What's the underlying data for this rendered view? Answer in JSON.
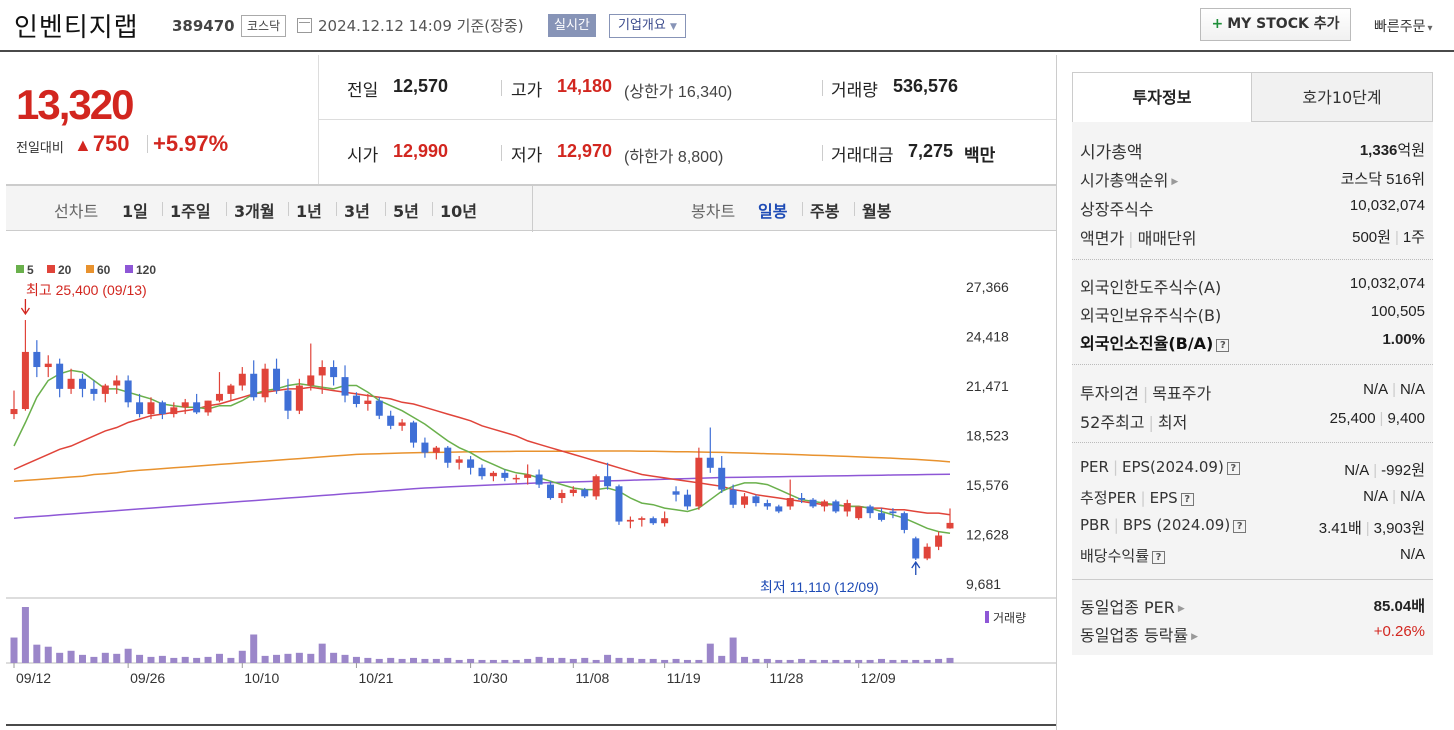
{
  "header": {
    "company_name": "인벤티지랩",
    "stock_code": "389470",
    "market": "코스닥",
    "date_text": "2024.12.12 14:09 기준(장중)",
    "realtime_label": "실시간",
    "overview_label": "기업개요",
    "mystock_label": "MY STOCK 추가",
    "quick_order_label": "빠른주문"
  },
  "summary": {
    "current_price": "13,320",
    "change_label": "전일대비",
    "change_value": "750",
    "change_pct": "+5.97%",
    "prev_label": "전일",
    "prev_value": "12,570",
    "high_label": "고가",
    "high_value": "14,180",
    "upper_limit": "(상한가 16,340)",
    "volume_label": "거래량",
    "volume_value": "536,576",
    "open_label": "시가",
    "open_value": "12,990",
    "low_label": "저가",
    "low_value": "12,970",
    "lower_limit": "(하한가 8,800)",
    "amount_label": "거래대금",
    "amount_value": "7,275",
    "amount_unit": "백만"
  },
  "chart_tabs": {
    "line_label": "선차트",
    "line_periods": [
      "1일",
      "1주일",
      "3개월",
      "1년",
      "3년",
      "5년",
      "10년"
    ],
    "candle_label": "봉차트",
    "candle_periods": [
      "일봉",
      "주봉",
      "월봉"
    ],
    "active_candle": "일봉"
  },
  "chart_data": {
    "type": "candlestick",
    "legend": [
      {
        "name": "5",
        "color": "#6ab04c"
      },
      {
        "name": "20",
        "color": "#e0443a"
      },
      {
        "name": "60",
        "color": "#e8922e"
      },
      {
        "name": "120",
        "color": "#8e57d6"
      }
    ],
    "y_ticks": [
      27366,
      24418,
      21471,
      18523,
      15576,
      12628,
      9681
    ],
    "ylim": [
      9681,
      27366
    ],
    "x_ticks": [
      "09/12",
      "09/26",
      "10/10",
      "10/21",
      "10/30",
      "11/08",
      "11/19",
      "11/28",
      "12/09"
    ],
    "x_tick_index": [
      0,
      10,
      20,
      30,
      40,
      49,
      57,
      66,
      74
    ],
    "high_annotation": "최고 25,400 (09/13)",
    "low_annotation": "최저 11,110 (12/09)",
    "volume_label": "거래량",
    "candles": [
      [
        19800,
        21200,
        19500,
        20100
      ],
      [
        20100,
        25400,
        20000,
        23500
      ],
      [
        23500,
        24200,
        22000,
        22600
      ],
      [
        22600,
        23300,
        22000,
        22800
      ],
      [
        22800,
        23100,
        20800,
        21300
      ],
      [
        21300,
        22500,
        21000,
        21900
      ],
      [
        21900,
        22200,
        20800,
        21300
      ],
      [
        21300,
        21800,
        20600,
        21000
      ],
      [
        21000,
        21600,
        20500,
        21500
      ],
      [
        21500,
        22100,
        21000,
        21800
      ],
      [
        21800,
        22100,
        20200,
        20500
      ],
      [
        20500,
        21000,
        19600,
        19800
      ],
      [
        19800,
        20800,
        19500,
        20500
      ],
      [
        20500,
        20600,
        19500,
        19800
      ],
      [
        19800,
        20500,
        19600,
        20200
      ],
      [
        20200,
        20700,
        19800,
        20500
      ],
      [
        20500,
        21000,
        19800,
        19900
      ],
      [
        19900,
        20600,
        19700,
        20600
      ],
      [
        20600,
        22300,
        20500,
        21000
      ],
      [
        21000,
        21600,
        20600,
        21500
      ],
      [
        21500,
        22600,
        21200,
        22200
      ],
      [
        22200,
        23000,
        20600,
        20800
      ],
      [
        20800,
        22800,
        20500,
        22500
      ],
      [
        22500,
        23100,
        21000,
        21200
      ],
      [
        21200,
        21900,
        19500,
        20000
      ],
      [
        20000,
        21900,
        19800,
        21500
      ],
      [
        21500,
        24000,
        21200,
        22100
      ],
      [
        22100,
        23000,
        21000,
        22600
      ],
      [
        22600,
        23000,
        21500,
        22000
      ],
      [
        22000,
        22700,
        20500,
        20900
      ],
      [
        20900,
        21100,
        20200,
        20400
      ],
      [
        20400,
        21000,
        20000,
        20600
      ],
      [
        20600,
        20800,
        19500,
        19700
      ],
      [
        19700,
        20000,
        18900,
        19100
      ],
      [
        19100,
        19500,
        18800,
        19300
      ],
      [
        19300,
        19400,
        17800,
        18100
      ],
      [
        18100,
        18400,
        17200,
        17500
      ],
      [
        17500,
        17900,
        17100,
        17800
      ],
      [
        17800,
        17900,
        16600,
        16900
      ],
      [
        16900,
        17300,
        16500,
        17100
      ],
      [
        17100,
        17300,
        16200,
        16600
      ],
      [
        16600,
        16800,
        15900,
        16100
      ],
      [
        16100,
        16400,
        15800,
        16300
      ],
      [
        16300,
        16500,
        15800,
        16000
      ],
      [
        16000,
        16200,
        15700,
        16000
      ],
      [
        16000,
        16800,
        15600,
        16200
      ],
      [
        16200,
        16500,
        15400,
        15600
      ],
      [
        15600,
        15800,
        14700,
        14800
      ],
      [
        14800,
        15300,
        14500,
        15100
      ],
      [
        15100,
        15500,
        14900,
        15300
      ],
      [
        15300,
        15400,
        14800,
        14900
      ],
      [
        14900,
        16200,
        14700,
        16100
      ],
      [
        16100,
        16900,
        15300,
        15500
      ],
      [
        15500,
        15600,
        13200,
        13400
      ],
      [
        13400,
        13700,
        13000,
        13500
      ],
      [
        13500,
        13700,
        13100,
        13600
      ],
      [
        13600,
        13700,
        13200,
        13300
      ],
      [
        13300,
        14000,
        13100,
        13600
      ],
      [
        15200,
        15500,
        14600,
        15000
      ],
      [
        15000,
        15300,
        14100,
        14300
      ],
      [
        14300,
        17800,
        14100,
        17200
      ],
      [
        17200,
        19000,
        16300,
        16600
      ],
      [
        16600,
        17300,
        15100,
        15300
      ],
      [
        15300,
        15600,
        14200,
        14400
      ],
      [
        14400,
        15100,
        14200,
        14900
      ],
      [
        14900,
        15000,
        14300,
        14500
      ],
      [
        14500,
        14700,
        14100,
        14300
      ],
      [
        14300,
        14400,
        13900,
        14000
      ],
      [
        14300,
        15900,
        14100,
        14800
      ],
      [
        14800,
        15100,
        14500,
        14700
      ],
      [
        14700,
        14800,
        14200,
        14300
      ],
      [
        14300,
        14700,
        14000,
        14600
      ],
      [
        14600,
        14700,
        13900,
        14000
      ],
      [
        14000,
        14700,
        13700,
        14500
      ],
      [
        13600,
        14200,
        13500,
        14300
      ],
      [
        14300,
        14400,
        13600,
        13900
      ],
      [
        13900,
        14200,
        13400,
        13500
      ],
      [
        14000,
        14200,
        13600,
        13900
      ],
      [
        13900,
        14000,
        12700,
        12900
      ],
      [
        12400,
        12500,
        11110,
        11200
      ],
      [
        11200,
        12100,
        11100,
        11900
      ],
      [
        11900,
        12800,
        11700,
        12570
      ],
      [
        12990,
        14180,
        12970,
        13320
      ]
    ],
    "volumes": [
      25,
      55,
      18,
      16,
      10,
      12,
      8,
      6,
      10,
      9,
      14,
      8,
      6,
      7,
      5,
      6,
      5,
      6,
      9,
      5,
      12,
      28,
      7,
      8,
      9,
      10,
      9,
      19,
      10,
      8,
      6,
      5,
      4,
      5,
      4,
      5,
      4,
      4,
      5,
      3,
      4,
      3,
      3,
      3,
      3,
      4,
      6,
      5,
      5,
      4,
      5,
      3,
      8,
      5,
      5,
      4,
      4,
      3,
      4,
      3,
      3,
      19,
      7,
      25,
      6,
      4,
      4,
      3,
      3,
      4,
      3,
      3,
      3,
      3,
      3,
      3,
      4,
      3,
      3,
      3,
      3,
      4,
      5
    ],
    "ma5": [
      17900,
      19300,
      20800,
      21800,
      22200,
      22400,
      22300,
      21800,
      21300,
      21300,
      21100,
      20900,
      20700,
      20400,
      20300,
      20200,
      20200,
      20100,
      20300,
      20300,
      20600,
      21000,
      21200,
      21300,
      21500,
      21600,
      21500,
      21400,
      21300,
      21500,
      21500,
      21100,
      20600,
      20300,
      20000,
      19600,
      19200,
      18700,
      18200,
      17800,
      17500,
      17100,
      16800,
      16500,
      16300,
      16200,
      16000,
      15800,
      15600,
      15400,
      15300,
      15300,
      15400,
      15200,
      14800,
      14500,
      14400,
      14200,
      14100,
      14000,
      14200,
      14700,
      15200,
      15500,
      15700,
      15700,
      15600,
      15300,
      15000,
      14700,
      14600,
      14500,
      14400,
      14300,
      14300,
      14200,
      14000,
      13800,
      13600,
      13300,
      13000,
      12800,
      12700
    ],
    "ma20": [
      16500,
      16800,
      17100,
      17400,
      17700,
      17900,
      18200,
      18500,
      18800,
      19000,
      19300,
      19500,
      19700,
      19800,
      19900,
      20000,
      20100,
      20300,
      20400,
      20600,
      20800,
      21000,
      21100,
      21200,
      21300,
      21300,
      21400,
      21300,
      21200,
      21100,
      21000,
      20900,
      20800,
      20700,
      20500,
      20400,
      20200,
      20000,
      19800,
      19600,
      19400,
      19100,
      18900,
      18700,
      18500,
      18200,
      18000,
      17800,
      17600,
      17400,
      17200,
      17000,
      16800,
      16600,
      16400,
      16200,
      16100,
      16000,
      15900,
      15800,
      15700,
      15600,
      15500,
      15300,
      15200,
      15000,
      14900,
      14800,
      14700,
      14600,
      14500,
      14400,
      14400,
      14300,
      14300,
      14200,
      14200,
      14100,
      14100,
      14000,
      13900,
      13900,
      13800
    ],
    "ma60": [
      15800,
      15850,
      15900,
      15950,
      16000,
      16050,
      16100,
      16200,
      16250,
      16300,
      16400,
      16450,
      16500,
      16550,
      16600,
      16650,
      16700,
      16750,
      16800,
      16850,
      16900,
      16950,
      17000,
      17050,
      17100,
      17150,
      17200,
      17250,
      17300,
      17350,
      17400,
      17420,
      17440,
      17460,
      17480,
      17500,
      17510,
      17520,
      17530,
      17540,
      17550,
      17560,
      17570,
      17570,
      17580,
      17580,
      17580,
      17590,
      17590,
      17590,
      17600,
      17600,
      17600,
      17600,
      17600,
      17590,
      17580,
      17570,
      17560,
      17550,
      17540,
      17530,
      17520,
      17500,
      17480,
      17460,
      17440,
      17420,
      17400,
      17380,
      17350,
      17330,
      17300,
      17280,
      17250,
      17220,
      17200,
      17170,
      17130,
      17100,
      17060,
      17010,
      16950
    ],
    "ma120": [
      13600,
      13650,
      13700,
      13750,
      13800,
      13850,
      13900,
      13950,
      14000,
      14050,
      14100,
      14150,
      14200,
      14250,
      14300,
      14350,
      14400,
      14450,
      14500,
      14550,
      14600,
      14650,
      14700,
      14750,
      14800,
      14850,
      14900,
      14950,
      15000,
      15050,
      15100,
      15150,
      15200,
      15250,
      15300,
      15350,
      15400,
      15430,
      15460,
      15490,
      15520,
      15550,
      15580,
      15610,
      15640,
      15670,
      15700,
      15720,
      15740,
      15760,
      15780,
      15800,
      15820,
      15840,
      15860,
      15880,
      15900,
      15920,
      15940,
      15960,
      15980,
      16000,
      16020,
      16030,
      16040,
      16050,
      16060,
      16070,
      16080,
      16090,
      16100,
      16110,
      16120,
      16130,
      16140,
      16150,
      16160,
      16170,
      16180,
      16190,
      16200,
      16210,
      16220
    ]
  },
  "invest_panel": {
    "tab_invest": "투자정보",
    "tab_hoga": "호가10단계",
    "market_cap_label": "시가총액",
    "market_cap_value": "1,336",
    "market_cap_unit": "억원",
    "cap_rank_label": "시가총액순위",
    "cap_rank_value": "코스닥 516위",
    "shares_label": "상장주식수",
    "shares_value": "10,032,074",
    "face_label": "액면가",
    "unit_label": "매매단위",
    "face_value": "500원",
    "unit_value": "1주",
    "foreign_limit_label": "외국인한도주식수(A)",
    "foreign_limit_value": "10,032,074",
    "foreign_hold_label": "외국인보유주식수(B)",
    "foreign_hold_value": "100,505",
    "foreign_ratio_label": "외국인소진율(B/A)",
    "foreign_ratio_value": "1.00%",
    "opinion_label": "투자의견",
    "target_label": "목표주가",
    "opinion_value": "N/A",
    "target_value": "N/A",
    "w52_high_label": "52주최고",
    "w52_low_label": "최저",
    "w52_high_value": "25,400",
    "w52_low_value": "9,400",
    "per_label": "PER",
    "eps_label": "EPS(2024.09)",
    "per_value": "N/A",
    "eps_value": "-992원",
    "est_per_label": "추정PER",
    "est_eps_label": "EPS",
    "est_per_value": "N/A",
    "est_eps_value": "N/A",
    "pbr_label": "PBR",
    "bps_label": "BPS (2024.09)",
    "pbr_value": "3.41배",
    "bps_value": "3,903원",
    "dividend_label": "배당수익률",
    "dividend_value": "N/A",
    "ind_per_label": "동일업종 PER",
    "ind_per_value": "85.04배",
    "ind_rate_label": "동일업종 등락률",
    "ind_rate_value": "+0.26%"
  }
}
